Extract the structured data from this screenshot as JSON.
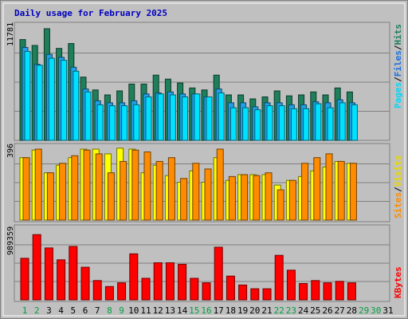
{
  "title": "Daily usage for February 2025",
  "colors": {
    "hits": "#1e7f5a",
    "files": "#20a0e8",
    "pages": "#00e0ff",
    "visits": "#ffff00",
    "sites": "#ff8c00",
    "kbytes": "#ff0000",
    "panel": "#c0c0c0",
    "weekend_day": "#00a040",
    "weekday": "#000000",
    "title": "#0000c0"
  },
  "panels": [
    {
      "max_label": "11781",
      "legend": [
        {
          "text": "Pages",
          "color": "#00d8f8"
        },
        {
          "text": "/",
          "color": "#000000"
        },
        {
          "text": "Files",
          "color": "#1870e0"
        },
        {
          "text": "/",
          "color": "#000000"
        },
        {
          "text": "Hits",
          "color": "#1e7f5a"
        }
      ]
    },
    {
      "max_label": "396",
      "legend": [
        {
          "text": "Sites",
          "color": "#ff8c00"
        },
        {
          "text": "/",
          "color": "#000000"
        },
        {
          "text": "Visits",
          "color": "#e8d800"
        }
      ]
    },
    {
      "max_label": "989359",
      "legend": [
        {
          "text": "KBytes",
          "color": "#ff0000"
        }
      ]
    }
  ],
  "days": [
    "1",
    "2",
    "3",
    "4",
    "5",
    "6",
    "7",
    "8",
    "9",
    "10",
    "11",
    "12",
    "13",
    "14",
    "15",
    "16",
    "17",
    "18",
    "19",
    "20",
    "21",
    "22",
    "23",
    "24",
    "25",
    "26",
    "27",
    "28",
    "29",
    "30",
    "31"
  ],
  "weekend_days": [
    1,
    2,
    8,
    9,
    15,
    16,
    22,
    23,
    29,
    30
  ],
  "chart_data": [
    {
      "type": "bar",
      "ylim": [
        0,
        11781
      ],
      "series": [
        {
          "name": "Hits",
          "values": [
            10200,
            9600,
            11300,
            9300,
            9800,
            6400,
            5100,
            4600,
            5000,
            5700,
            5700,
            6600,
            6200,
            5800,
            5300,
            5100,
            6600,
            4600,
            4600,
            4200,
            4400,
            5000,
            4500,
            4600,
            4900,
            4600,
            5300,
            4900,
            null,
            null,
            null
          ]
        },
        {
          "name": "Files",
          "values": [
            9400,
            7700,
            8700,
            8400,
            7400,
            5200,
            4000,
            3800,
            3800,
            4000,
            4700,
            4800,
            4900,
            4700,
            4700,
            4400,
            5200,
            3800,
            3800,
            3400,
            3800,
            3800,
            3600,
            3600,
            3900,
            3800,
            4100,
            3800,
            null,
            null,
            null
          ]
        },
        {
          "name": "Pages",
          "values": [
            9000,
            7600,
            8300,
            8100,
            7000,
            4900,
            3600,
            3500,
            3500,
            3600,
            4400,
            4700,
            4600,
            4400,
            4700,
            4400,
            4800,
            3300,
            3300,
            3100,
            3500,
            3500,
            3200,
            3200,
            3700,
            3300,
            3800,
            3600,
            null,
            null,
            null
          ]
        }
      ]
    },
    {
      "type": "bar",
      "ylim": [
        0,
        396
      ],
      "series": [
        {
          "name": "Visits",
          "values": [
            330,
            370,
            250,
            290,
            330,
            375,
            375,
            350,
            380,
            375,
            250,
            290,
            235,
            200,
            260,
            200,
            330,
            210,
            240,
            240,
            240,
            185,
            210,
            230,
            260,
            280,
            310,
            300,
            null,
            null,
            null
          ]
        },
        {
          "name": "Sites",
          "values": [
            330,
            375,
            250,
            300,
            340,
            370,
            350,
            250,
            310,
            370,
            360,
            310,
            330,
            220,
            300,
            270,
            375,
            230,
            240,
            235,
            250,
            160,
            210,
            300,
            330,
            350,
            310,
            300,
            null,
            null,
            null
          ]
        }
      ]
    },
    {
      "type": "bar",
      "ylim": [
        0,
        989359
      ],
      "series": [
        {
          "name": "KBytes",
          "values": [
            560000,
            880000,
            700000,
            540000,
            720000,
            440000,
            260000,
            180000,
            230000,
            620000,
            290000,
            500000,
            500000,
            480000,
            290000,
            230000,
            710000,
            320000,
            200000,
            150000,
            150000,
            600000,
            400000,
            220000,
            260000,
            230000,
            250000,
            230000,
            null,
            null,
            null
          ]
        }
      ]
    }
  ]
}
